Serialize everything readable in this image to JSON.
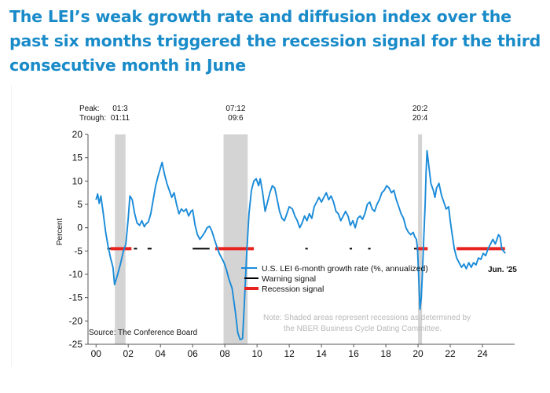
{
  "headline": "The LEI’s weak growth rate and diffusion index over the past six months triggered the recession signal for the third consecutive month in June",
  "chart_data": {
    "type": "line",
    "ylabel": "Percent",
    "ylim": [
      -25,
      20
    ],
    "xlim": [
      1999.5,
      2026.0
    ],
    "yticks": [
      20,
      15,
      10,
      5,
      0,
      -5,
      -10,
      -15,
      -20,
      -25
    ],
    "xticks": [
      {
        "label": "00",
        "year": 2000
      },
      {
        "label": "02",
        "year": 2002
      },
      {
        "label": "04",
        "year": 2004
      },
      {
        "label": "06",
        "year": 2006
      },
      {
        "label": "08",
        "year": 2008
      },
      {
        "label": "10",
        "year": 2010
      },
      {
        "label": "12",
        "year": 2012
      },
      {
        "label": "14",
        "year": 2014
      },
      {
        "label": "16",
        "year": 2016
      },
      {
        "label": "18",
        "year": 2018
      },
      {
        "label": "20",
        "year": 2020
      },
      {
        "label": "22",
        "year": 2022
      },
      {
        "label": "24",
        "year": 2024
      }
    ],
    "peak_label": "Peak:",
    "trough_label": "Trough:",
    "recessions": [
      {
        "start": 2001.17,
        "end": 2001.83,
        "peak": "01:3",
        "trough": "01:11"
      },
      {
        "start": 2007.92,
        "end": 2009.42,
        "peak": "07:12",
        "trough": "09:6"
      },
      {
        "start": 2020.0,
        "end": 2020.25,
        "peak": "20:2",
        "trough": "20:4"
      }
    ],
    "signal_level": -4.5,
    "warning_segments": [
      [
        2000.7,
        2001.0
      ],
      [
        2002.35,
        2002.55
      ],
      [
        2003.2,
        2003.45
      ],
      [
        2006.0,
        2007.05
      ],
      [
        2013.0,
        2013.15
      ],
      [
        2015.75,
        2015.9
      ],
      [
        2016.9,
        2017.05
      ],
      [
        2019.75,
        2019.9
      ]
    ],
    "recession_signal_segments": [
      [
        2000.9,
        2002.2
      ],
      [
        2007.4,
        2009.8
      ],
      [
        2019.9,
        2020.6
      ],
      [
        2022.4,
        2025.4
      ]
    ],
    "series": [
      {
        "name": "U.S. LEI 6-month growth rate (%, annualized)",
        "color": "#1a8bd8",
        "points": [
          [
            2000.0,
            6.0
          ],
          [
            2000.1,
            7.2
          ],
          [
            2000.2,
            5.2
          ],
          [
            2000.3,
            6.8
          ],
          [
            2000.45,
            3.0
          ],
          [
            2000.6,
            -1.0
          ],
          [
            2000.75,
            -4.0
          ],
          [
            2000.9,
            -6.5
          ],
          [
            2001.05,
            -8.5
          ],
          [
            2001.15,
            -12.2
          ],
          [
            2001.3,
            -10.5
          ],
          [
            2001.5,
            -8.0
          ],
          [
            2001.7,
            -5.0
          ],
          [
            2001.85,
            -3.5
          ],
          [
            2002.0,
            2.0
          ],
          [
            2002.1,
            6.8
          ],
          [
            2002.25,
            6.0
          ],
          [
            2002.4,
            3.0
          ],
          [
            2002.55,
            1.0
          ],
          [
            2002.7,
            0.5
          ],
          [
            2002.85,
            1.5
          ],
          [
            2003.0,
            0.2
          ],
          [
            2003.1,
            0.8
          ],
          [
            2003.25,
            1.2
          ],
          [
            2003.4,
            3.0
          ],
          [
            2003.55,
            6.0
          ],
          [
            2003.7,
            9.0
          ],
          [
            2003.85,
            11.0
          ],
          [
            2004.0,
            12.8
          ],
          [
            2004.1,
            14.0
          ],
          [
            2004.25,
            11.5
          ],
          [
            2004.4,
            9.5
          ],
          [
            2004.55,
            8.0
          ],
          [
            2004.7,
            6.5
          ],
          [
            2004.85,
            7.5
          ],
          [
            2005.0,
            5.0
          ],
          [
            2005.15,
            3.0
          ],
          [
            2005.3,
            4.0
          ],
          [
            2005.45,
            3.5
          ],
          [
            2005.6,
            4.0
          ],
          [
            2005.75,
            2.5
          ],
          [
            2005.9,
            3.5
          ],
          [
            2006.0,
            3.8
          ],
          [
            2006.15,
            0.5
          ],
          [
            2006.3,
            -1.5
          ],
          [
            2006.45,
            -2.5
          ],
          [
            2006.6,
            -1.8
          ],
          [
            2006.75,
            -1.0
          ],
          [
            2006.9,
            0.0
          ],
          [
            2007.05,
            0.3
          ],
          [
            2007.2,
            -0.8
          ],
          [
            2007.35,
            -2.5
          ],
          [
            2007.5,
            -4.0
          ],
          [
            2007.65,
            -5.5
          ],
          [
            2007.8,
            -6.5
          ],
          [
            2007.95,
            -7.5
          ],
          [
            2008.1,
            -9.0
          ],
          [
            2008.25,
            -11.0
          ],
          [
            2008.45,
            -13.0
          ],
          [
            2008.65,
            -18.0
          ],
          [
            2008.8,
            -22.5
          ],
          [
            2008.95,
            -24.0
          ],
          [
            2009.1,
            -23.8
          ],
          [
            2009.2,
            -17.0
          ],
          [
            2009.35,
            -6.0
          ],
          [
            2009.5,
            3.0
          ],
          [
            2009.65,
            8.0
          ],
          [
            2009.8,
            10.0
          ],
          [
            2009.95,
            10.5
          ],
          [
            2010.1,
            9.0
          ],
          [
            2010.2,
            10.5
          ],
          [
            2010.35,
            7.5
          ],
          [
            2010.5,
            3.5
          ],
          [
            2010.65,
            5.5
          ],
          [
            2010.8,
            7.5
          ],
          [
            2010.95,
            9.0
          ],
          [
            2011.1,
            8.5
          ],
          [
            2011.25,
            6.0
          ],
          [
            2011.4,
            3.5
          ],
          [
            2011.55,
            2.0
          ],
          [
            2011.7,
            1.5
          ],
          [
            2011.85,
            3.0
          ],
          [
            2012.0,
            4.5
          ],
          [
            2012.2,
            4.0
          ],
          [
            2012.35,
            2.5
          ],
          [
            2012.5,
            1.5
          ],
          [
            2012.65,
            0.0
          ],
          [
            2012.8,
            1.0
          ],
          [
            2012.95,
            2.5
          ],
          [
            2013.1,
            1.5
          ],
          [
            2013.25,
            3.0
          ],
          [
            2013.4,
            2.0
          ],
          [
            2013.55,
            4.5
          ],
          [
            2013.7,
            5.5
          ],
          [
            2013.85,
            6.5
          ],
          [
            2014.0,
            5.5
          ],
          [
            2014.15,
            6.5
          ],
          [
            2014.3,
            7.5
          ],
          [
            2014.45,
            6.0
          ],
          [
            2014.6,
            6.8
          ],
          [
            2014.75,
            5.5
          ],
          [
            2014.9,
            3.5
          ],
          [
            2015.05,
            3.0
          ],
          [
            2015.2,
            1.5
          ],
          [
            2015.35,
            2.5
          ],
          [
            2015.5,
            3.5
          ],
          [
            2015.65,
            2.5
          ],
          [
            2015.8,
            0.5
          ],
          [
            2015.95,
            1.5
          ],
          [
            2016.1,
            0.0
          ],
          [
            2016.25,
            2.0
          ],
          [
            2016.4,
            2.5
          ],
          [
            2016.55,
            1.8
          ],
          [
            2016.7,
            3.0
          ],
          [
            2016.85,
            5.0
          ],
          [
            2017.0,
            5.5
          ],
          [
            2017.15,
            4.0
          ],
          [
            2017.3,
            3.5
          ],
          [
            2017.45,
            5.0
          ],
          [
            2017.6,
            6.0
          ],
          [
            2017.75,
            7.5
          ],
          [
            2017.9,
            8.0
          ],
          [
            2018.05,
            9.0
          ],
          [
            2018.2,
            8.5
          ],
          [
            2018.35,
            7.5
          ],
          [
            2018.5,
            8.0
          ],
          [
            2018.65,
            6.0
          ],
          [
            2018.8,
            4.5
          ],
          [
            2018.95,
            3.0
          ],
          [
            2019.1,
            2.0
          ],
          [
            2019.25,
            0.0
          ],
          [
            2019.4,
            -1.0
          ],
          [
            2019.55,
            -1.5
          ],
          [
            2019.7,
            -1.0
          ],
          [
            2019.8,
            -2.0
          ],
          [
            2019.9,
            -2.5
          ],
          [
            2019.97,
            -4.5
          ],
          [
            2020.05,
            -11.5
          ],
          [
            2020.12,
            -17.5
          ],
          [
            2020.2,
            -15.0
          ],
          [
            2020.28,
            -9.0
          ],
          [
            2020.36,
            -2.0
          ],
          [
            2020.44,
            5.0
          ],
          [
            2020.5,
            12.0
          ],
          [
            2020.56,
            16.5
          ],
          [
            2020.66,
            13.5
          ],
          [
            2020.8,
            9.5
          ],
          [
            2020.95,
            8.0
          ],
          [
            2021.05,
            6.5
          ],
          [
            2021.15,
            8.5
          ],
          [
            2021.3,
            9.5
          ],
          [
            2021.45,
            7.0
          ],
          [
            2021.6,
            5.5
          ],
          [
            2021.75,
            4.0
          ],
          [
            2021.9,
            4.5
          ],
          [
            2022.0,
            1.5
          ],
          [
            2022.1,
            -1.0
          ],
          [
            2022.25,
            -4.5
          ],
          [
            2022.4,
            -6.5
          ],
          [
            2022.55,
            -7.5
          ],
          [
            2022.7,
            -8.5
          ],
          [
            2022.85,
            -7.8
          ],
          [
            2023.0,
            -8.8
          ],
          [
            2023.15,
            -7.5
          ],
          [
            2023.3,
            -8.5
          ],
          [
            2023.45,
            -7.5
          ],
          [
            2023.6,
            -8.0
          ],
          [
            2023.75,
            -6.5
          ],
          [
            2023.9,
            -6.8
          ],
          [
            2024.05,
            -5.5
          ],
          [
            2024.2,
            -6.0
          ],
          [
            2024.35,
            -4.5
          ],
          [
            2024.5,
            -3.5
          ],
          [
            2024.65,
            -2.5
          ],
          [
            2024.8,
            -3.5
          ],
          [
            2024.9,
            -2.5
          ],
          [
            2025.0,
            -1.5
          ],
          [
            2025.1,
            -2.0
          ],
          [
            2025.2,
            -4.5
          ],
          [
            2025.3,
            -5.0
          ],
          [
            2025.42,
            -5.5
          ]
        ]
      }
    ],
    "legend": {
      "series_label": "U.S. LEI 6-month growth rate (%, annualized)",
      "warning_label": "Warning signal",
      "recession_label": "Recession signal"
    },
    "end_label": "Jun. '25",
    "note_line1": "Note: Shaded areas represent recessions as determined by",
    "note_line2": "the NBER Business Cycle Dating Committee.",
    "source": "Source: The Conference Board",
    "colors": {
      "series": "#1a8bd8",
      "recession_shade": "#d4d4d4",
      "warning": "#000000",
      "recession_signal": "#e8231f",
      "note": "#b8b8b8"
    }
  }
}
